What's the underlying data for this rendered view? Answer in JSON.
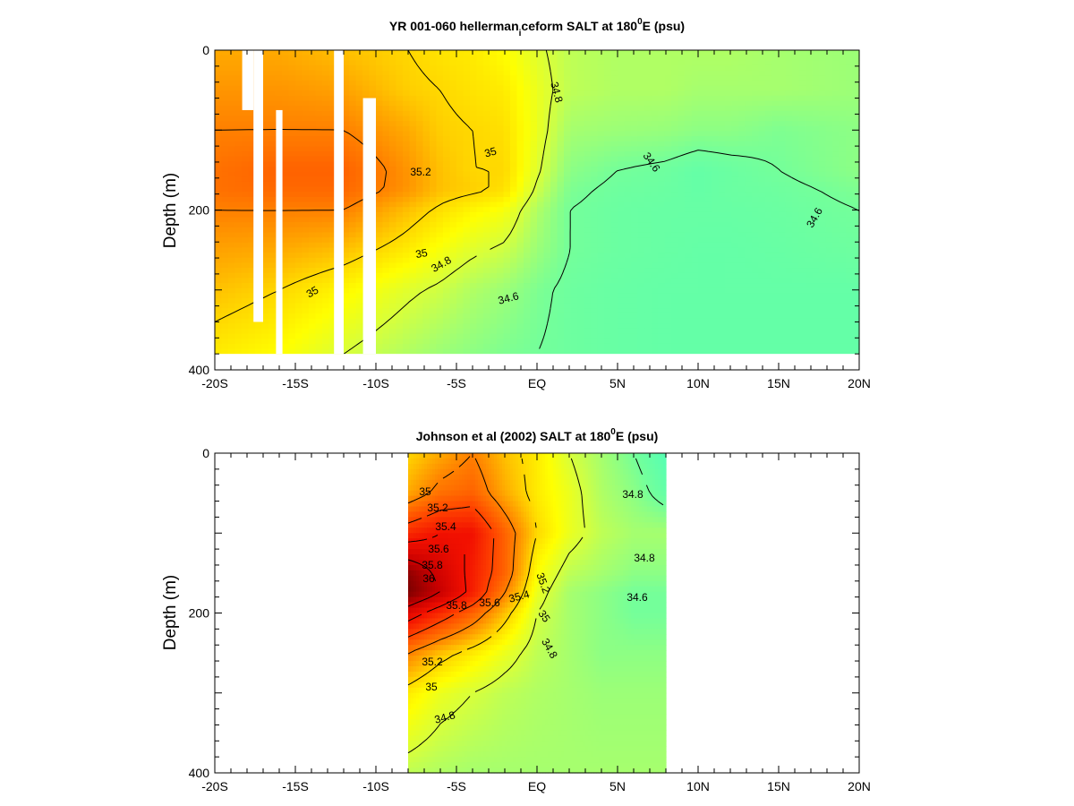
{
  "chart_data": [
    {
      "type": "heatmap",
      "subtype": "filled contour section",
      "title": {
        "pre": "YR 001-060 hellerman",
        "sub": "i",
        "mid": "ceform SALT at 180",
        "sup": "0",
        "post": "E (psu)"
      },
      "ylabel": "Depth (m)",
      "x_ticklabels": [
        "-20S",
        "-15S",
        "-10S",
        "-5S",
        "EQ",
        "5N",
        "10N",
        "15N",
        "20N"
      ],
      "x_ticks": [
        -20,
        -15,
        -10,
        -5,
        0,
        5,
        10,
        15,
        20
      ],
      "xlim": [
        -20,
        20
      ],
      "y_ticklabels": [
        "0",
        "200",
        "400"
      ],
      "y_ticks": [
        0,
        200,
        400
      ],
      "ylim": [
        0,
        400
      ],
      "y_inverted": true,
      "data_xrange": [
        -20,
        20
      ],
      "data_depth_max": 380,
      "missing_columns": [
        {
          "x0": -17.6,
          "x1": -17.0,
          "depth_from": 0,
          "depth_to": 340
        },
        {
          "x0": -16.2,
          "x1": -15.8,
          "depth_from": 75,
          "depth_to": 380
        },
        {
          "x0": -18.3,
          "x1": -17.6,
          "depth_from": 0,
          "depth_to": 75
        },
        {
          "x0": -12.6,
          "x1": -12.0,
          "depth_from": 0,
          "depth_to": 380
        },
        {
          "x0": -10.8,
          "x1": -10.0,
          "depth_from": 60,
          "depth_to": 380
        }
      ],
      "salinity_grid": {
        "x": [
          -20,
          -16,
          -12,
          -8,
          -6,
          -4,
          -2,
          0,
          2,
          5,
          8,
          10,
          12,
          15,
          20
        ],
        "depth": [
          0,
          50,
          100,
          150,
          175,
          200,
          250,
          300,
          380
        ],
        "values": [
          [
            35.1,
            35.1,
            35.05,
            35.0,
            34.97,
            34.95,
            34.9,
            34.82,
            34.75,
            34.72,
            34.72,
            34.72,
            34.72,
            34.7,
            34.68
          ],
          [
            35.15,
            35.15,
            35.12,
            35.02,
            35.0,
            34.97,
            34.95,
            34.85,
            34.75,
            34.72,
            34.72,
            34.7,
            34.7,
            34.7,
            34.68
          ],
          [
            35.2,
            35.2,
            35.2,
            35.1,
            35.02,
            35.0,
            34.98,
            34.85,
            34.7,
            34.68,
            34.67,
            34.65,
            34.65,
            34.62,
            34.65
          ],
          [
            35.25,
            35.3,
            35.3,
            35.15,
            35.05,
            35.0,
            35.0,
            34.82,
            34.65,
            34.6,
            34.58,
            34.55,
            34.57,
            34.6,
            34.65
          ],
          [
            35.25,
            35.28,
            35.28,
            35.15,
            35.05,
            35.02,
            34.98,
            34.78,
            34.62,
            34.58,
            34.57,
            34.55,
            34.57,
            34.58,
            34.62
          ],
          [
            35.2,
            35.2,
            35.2,
            35.05,
            34.98,
            34.92,
            34.88,
            34.72,
            34.6,
            34.57,
            34.56,
            34.56,
            34.56,
            34.57,
            34.6
          ],
          [
            35.12,
            35.1,
            35.05,
            34.95,
            34.88,
            34.82,
            34.78,
            34.68,
            34.6,
            34.57,
            34.56,
            34.55,
            34.55,
            34.56,
            34.58
          ],
          [
            35.05,
            35.0,
            34.92,
            34.82,
            34.78,
            34.72,
            34.68,
            34.62,
            34.58,
            34.56,
            34.55,
            34.55,
            34.55,
            34.55,
            34.55
          ],
          [
            34.95,
            34.9,
            34.8,
            34.72,
            34.68,
            34.65,
            34.62,
            34.6,
            34.58,
            34.56,
            34.55,
            34.55,
            34.55,
            34.55,
            34.55
          ]
        ]
      },
      "contour_labels": [
        "34.8",
        "35",
        "35.2",
        "34.6",
        "34.6",
        "35",
        "34.8",
        "35",
        "34.6"
      ]
    },
    {
      "type": "heatmap",
      "subtype": "filled contour section",
      "title": {
        "pre": "Johnson et al (2002) SALT at 180",
        "sup": "0",
        "post": "E (psu)"
      },
      "ylabel": "Depth (m)",
      "x_ticklabels": [
        "-20S",
        "-15S",
        "-10S",
        "-5S",
        "EQ",
        "5N",
        "10N",
        "15N",
        "20N"
      ],
      "x_ticks": [
        -20,
        -15,
        -10,
        -5,
        0,
        5,
        10,
        15,
        20
      ],
      "xlim": [
        -20,
        20
      ],
      "y_ticklabels": [
        "0",
        "200",
        "400"
      ],
      "y_ticks": [
        0,
        200,
        400
      ],
      "ylim": [
        0,
        400
      ],
      "y_inverted": true,
      "data_xrange": [
        -8,
        8
      ],
      "data_depth_max": 400,
      "missing_columns": [],
      "salinity_grid": {
        "x": [
          -8,
          -6,
          -4,
          -2,
          0,
          2,
          4,
          6,
          8
        ],
        "depth": [
          0,
          50,
          100,
          150,
          175,
          200,
          250,
          300,
          400
        ],
        "values": [
          [
            35.0,
            35.1,
            35.2,
            35.05,
            34.95,
            34.8,
            34.7,
            34.6,
            34.5
          ],
          [
            35.1,
            35.25,
            35.3,
            35.1,
            34.95,
            34.85,
            34.72,
            34.65,
            34.55
          ],
          [
            35.5,
            35.6,
            35.6,
            35.3,
            35.0,
            34.85,
            34.75,
            34.7,
            34.7
          ],
          [
            35.95,
            35.75,
            35.55,
            35.3,
            34.9,
            34.75,
            34.7,
            34.65,
            34.65
          ],
          [
            36.0,
            35.8,
            35.55,
            35.2,
            34.85,
            34.7,
            34.65,
            34.6,
            34.6
          ],
          [
            35.7,
            35.5,
            35.3,
            35.05,
            34.8,
            34.7,
            34.65,
            34.6,
            34.6
          ],
          [
            35.2,
            35.05,
            34.95,
            34.85,
            34.75,
            34.7,
            34.65,
            34.65,
            34.65
          ],
          [
            34.95,
            34.85,
            34.8,
            34.75,
            34.72,
            34.7,
            34.68,
            34.68,
            34.68
          ],
          [
            34.75,
            34.72,
            34.7,
            34.7,
            34.7,
            34.7,
            34.7,
            34.7,
            34.7
          ]
        ]
      },
      "contour_labels": [
        "35",
        "35.2",
        "35.4",
        "35.6",
        "35.8",
        "36",
        "35.8",
        "35.6",
        "35.4",
        "35.2",
        "35",
        "34.8",
        "35.2",
        "35",
        "34.8",
        "34.8",
        "34.8",
        "34.6"
      ]
    }
  ]
}
